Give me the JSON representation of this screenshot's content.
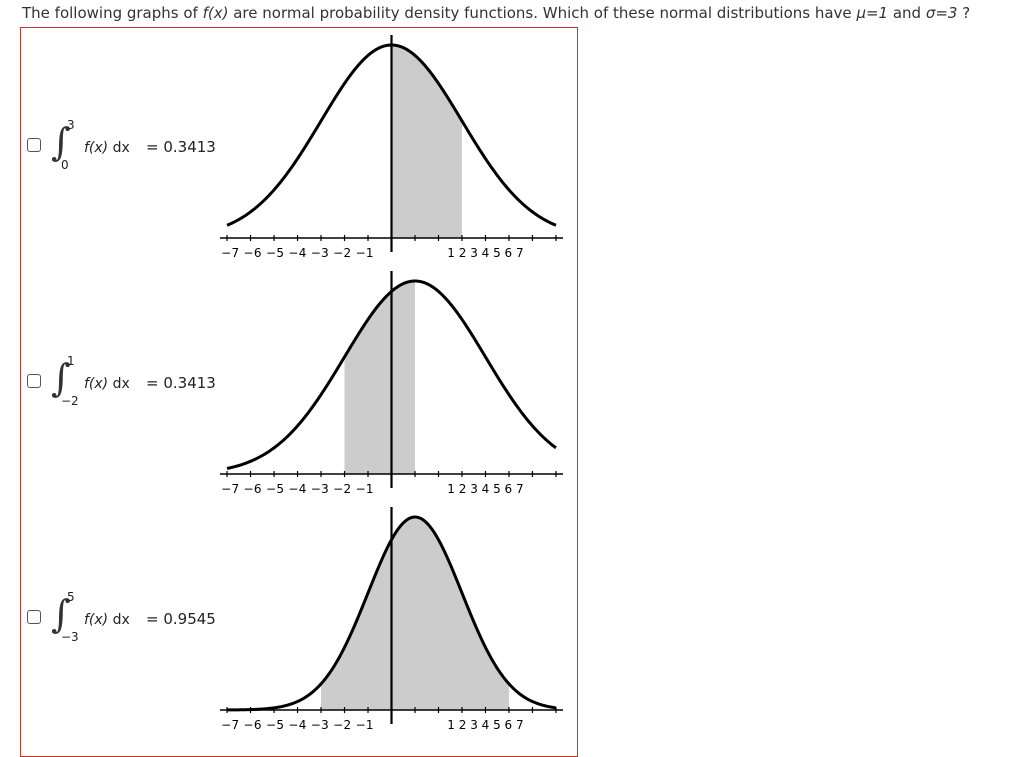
{
  "question": {
    "prefix": "The following graphs of ",
    "fx": "f(x)",
    "middle": " are normal probability density functions. Which of these normal distributions have ",
    "mu": "μ=1",
    "and": " and ",
    "sigma": "σ=3",
    "suffix": " ?"
  },
  "options": [
    {
      "checked": false,
      "integral": {
        "upper": "3",
        "lower": "0",
        "expr": "f(x)",
        "dx": " dx",
        "result": "= 0.3413"
      },
      "graph": {
        "mu": 0,
        "sigma": 3,
        "shade_from": 0,
        "shade_to": 3
      }
    },
    {
      "checked": false,
      "integral": {
        "upper": "1",
        "lower": "−2",
        "expr": "f(x)",
        "dx": " dx",
        "result": "= 0.3413"
      },
      "graph": {
        "mu": 1,
        "sigma": 3,
        "shade_from": -2,
        "shade_to": 1
      }
    },
    {
      "checked": false,
      "integral": {
        "upper": "5",
        "lower": "−3",
        "expr": "f(x)",
        "dx": " dx",
        "result": "= 0.9545"
      },
      "graph": {
        "mu": 1,
        "sigma": 2,
        "shade_from": -3,
        "shade_to": 5
      }
    }
  ],
  "axis": {
    "neg_labels": "−7 −6 −5 −4 −3 −2 −1",
    "pos_labels": "1  2  3  4  5  6  7",
    "xmin": -7.3,
    "xmax": 7.3
  },
  "colors": {
    "curve": "#000000",
    "shade": "#cccccc",
    "frame": "#c0392b"
  }
}
